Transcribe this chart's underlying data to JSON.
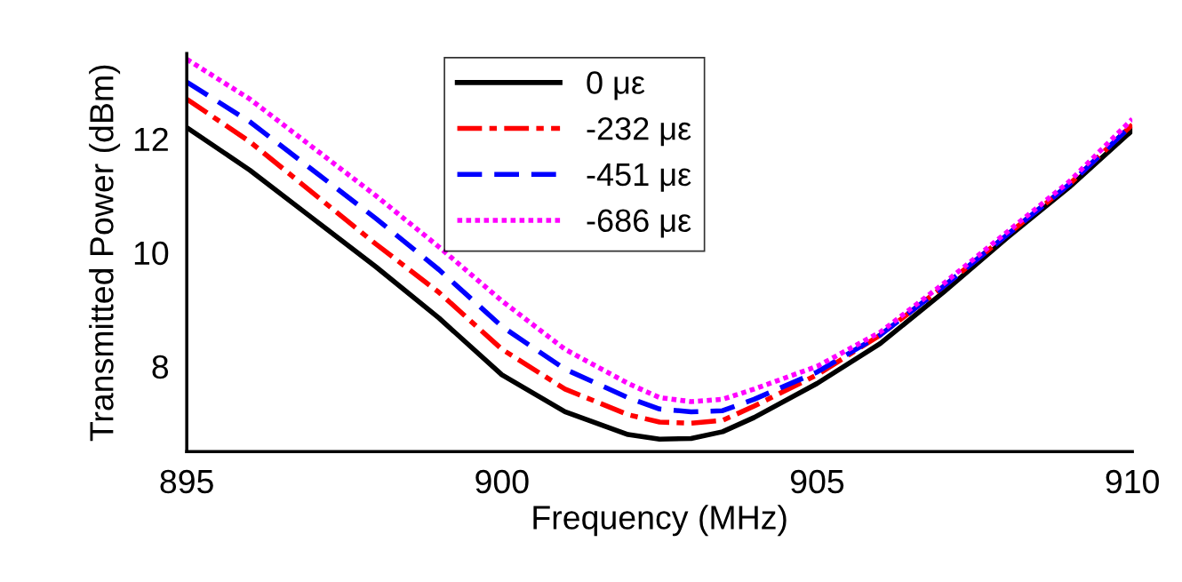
{
  "chart_data": {
    "type": "line",
    "xlabel": "Frequency (MHz)",
    "ylabel": "Transmitted Power (dBm)",
    "x": [
      895,
      896,
      897,
      898,
      899,
      900,
      901,
      902,
      902.5,
      903,
      903.5,
      904,
      905,
      906,
      907,
      908,
      909,
      910
    ],
    "xlim": [
      895,
      910
    ],
    "xticks": [
      895,
      900,
      905,
      910
    ],
    "ylim": [
      6.5,
      13.5
    ],
    "yticks": [
      8,
      10,
      12
    ],
    "grid": false,
    "legend": "top",
    "marker": "none",
    "series": [
      {
        "name": "0 με",
        "color": "#000000",
        "line_style": "solid",
        "values": [
          12.2,
          11.45,
          10.6,
          9.75,
          8.85,
          7.85,
          7.2,
          6.8,
          6.72,
          6.73,
          6.85,
          7.1,
          7.7,
          8.4,
          9.3,
          10.25,
          11.15,
          12.15
        ]
      },
      {
        "name": "-232 με",
        "color": "#ff0000",
        "line_style": "dashdot",
        "values": [
          12.7,
          11.95,
          11.05,
          10.15,
          9.3,
          8.3,
          7.6,
          7.15,
          7.02,
          7.0,
          7.05,
          7.3,
          7.85,
          8.55,
          9.4,
          10.3,
          11.2,
          12.25
        ]
      },
      {
        "name": "-451 με",
        "color": "#0000ff",
        "line_style": "dashed",
        "values": [
          13.0,
          12.3,
          11.45,
          10.6,
          9.7,
          8.7,
          7.95,
          7.45,
          7.25,
          7.2,
          7.22,
          7.42,
          7.9,
          8.55,
          9.4,
          10.3,
          11.2,
          12.25
        ]
      },
      {
        "name": "-686 με",
        "color": "#ff00ff",
        "line_style": "dotted",
        "values": [
          13.4,
          12.7,
          11.85,
          11.0,
          10.1,
          9.15,
          8.3,
          7.7,
          7.45,
          7.38,
          7.42,
          7.6,
          8.0,
          8.6,
          9.45,
          10.35,
          11.25,
          12.35
        ]
      }
    ]
  }
}
